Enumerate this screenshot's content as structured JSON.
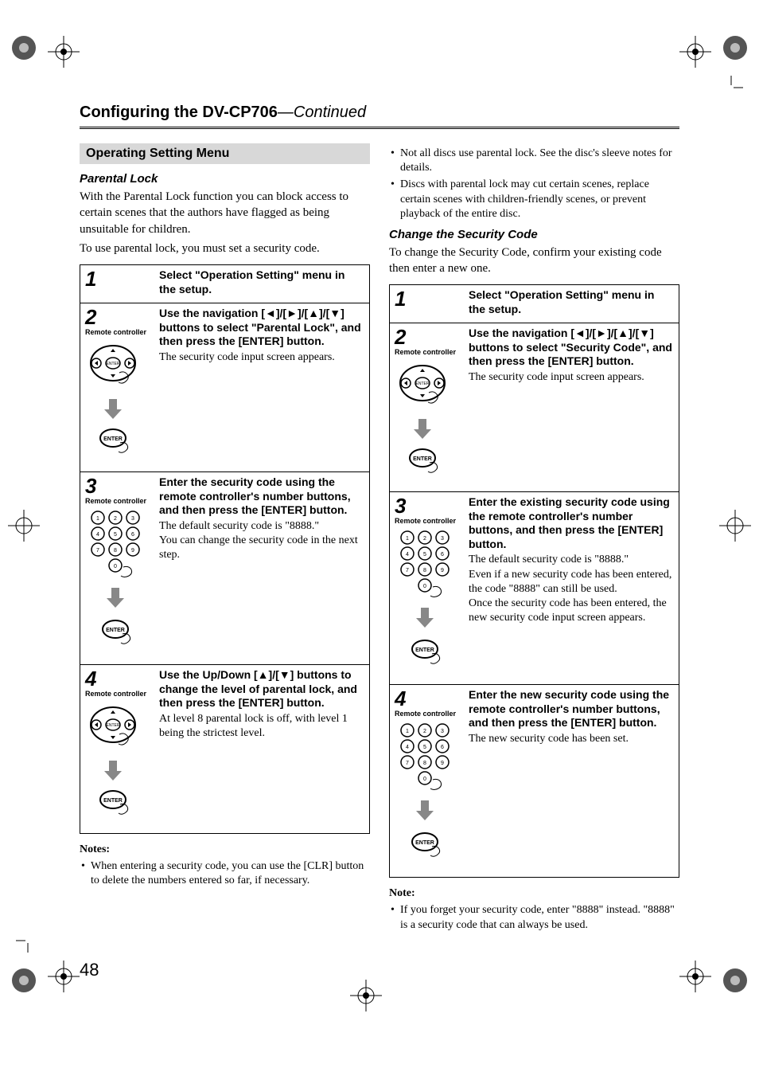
{
  "header": {
    "title_prefix": "Configuring the DV-CP706",
    "title_suffix": "—Continued"
  },
  "page_number": "48",
  "left": {
    "section_bar": "Operating Setting Menu",
    "sub1": "Parental Lock",
    "intro1": "With the Parental Lock function you can block access to certain scenes that the authors have flagged as being unsuitable for children.",
    "intro2": "To use parental lock, you must set a security code.",
    "rc_label": "Remote controller",
    "steps": [
      {
        "num": "1",
        "diagram": "none",
        "title": "Select \"Operation Setting\" menu in the setup.",
        "body": ""
      },
      {
        "num": "2",
        "diagram": "nav",
        "title": "Use the navigation [◄]/[►]/[▲]/[▼] buttons to select \"Parental Lock\", and then press the [ENTER] button.",
        "body": "The security code input screen appears."
      },
      {
        "num": "3",
        "diagram": "keypad",
        "title": "Enter the security code using the remote controller's number buttons, and then press the [ENTER] button.",
        "body": "The default security code is \"8888.\"\nYou can change the security code in the next step."
      },
      {
        "num": "4",
        "diagram": "nav",
        "title": "Use the Up/Down [▲]/[▼] buttons to change the level of parental lock, and then press the [ENTER] button.",
        "body": "At level 8 parental lock is off, with level 1 being the strictest level."
      }
    ],
    "notes_head": "Notes:",
    "notes": [
      "When entering a security code, you can use the [CLR] button to delete the numbers entered so far, if necessary."
    ]
  },
  "right": {
    "top_bullets": [
      "Not all discs use parental lock. See the disc's sleeve notes for details.",
      "Discs with parental lock may cut certain scenes, replace certain scenes with children-friendly scenes, or prevent playback of the entire disc."
    ],
    "sub1": "Change the Security Code",
    "intro1": "To change the Security Code, confirm your existing code then enter a new one.",
    "rc_label": "Remote controller",
    "steps": [
      {
        "num": "1",
        "diagram": "none",
        "title": "Select \"Operation Setting\" menu in the setup.",
        "body": ""
      },
      {
        "num": "2",
        "diagram": "nav",
        "title": "Use the navigation [◄]/[►]/[▲]/[▼] buttons to select \"Security Code\", and then press the [ENTER] button.",
        "body": "The security code input screen appears."
      },
      {
        "num": "3",
        "diagram": "keypad",
        "title": "Enter the existing security code using the remote controller's number buttons, and then press the [ENTER] button.",
        "body": "The default security code is \"8888.\"\nEven if a new security code has been entered, the code \"8888\" can still be used.\nOnce the security code has been entered, the new security code input screen appears."
      },
      {
        "num": "4",
        "diagram": "keypad",
        "title": "Enter the new security code using the remote controller's number buttons, and then press the [ENTER] button.",
        "body": "The new security code has been set."
      }
    ],
    "notes_head": "Note:",
    "notes": [
      "If you forget your security code, enter \"8888\" instead. \"8888\" is a security code that can always be used."
    ]
  }
}
